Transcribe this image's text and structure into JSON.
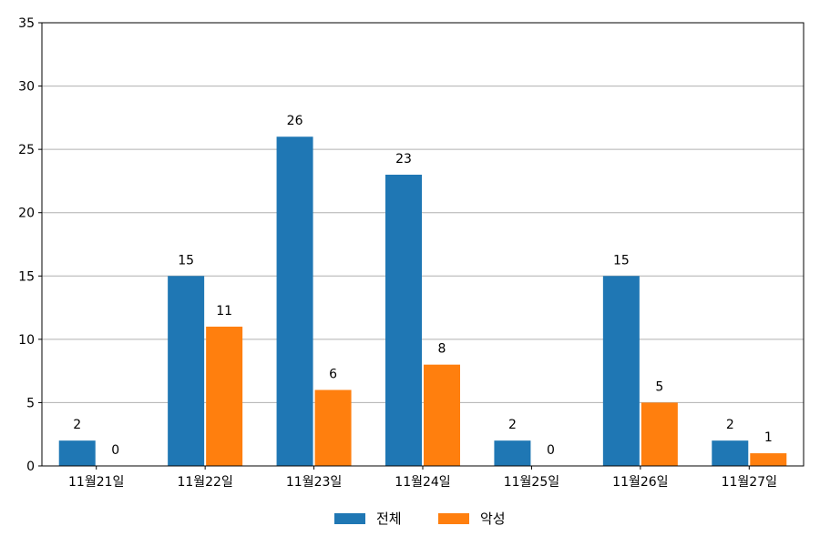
{
  "chart_data": {
    "type": "bar",
    "categories": [
      "11월21일",
      "11월22일",
      "11월23일",
      "11월24일",
      "11월25일",
      "11월26일",
      "11월27일"
    ],
    "series": [
      {
        "name": "전체",
        "values": [
          2,
          15,
          26,
          23,
          2,
          15,
          2
        ],
        "color": "#1f77b4"
      },
      {
        "name": "악성",
        "values": [
          0,
          11,
          6,
          8,
          0,
          5,
          1
        ],
        "color": "#ff7f0e"
      }
    ],
    "title": "",
    "xlabel": "",
    "ylabel": "",
    "ylim": [
      0,
      35
    ],
    "yticks": [
      0,
      5,
      10,
      15,
      20,
      25,
      30,
      35
    ],
    "grid": "horizontal",
    "legend_position": "bottom-center",
    "show_data_labels": true
  }
}
